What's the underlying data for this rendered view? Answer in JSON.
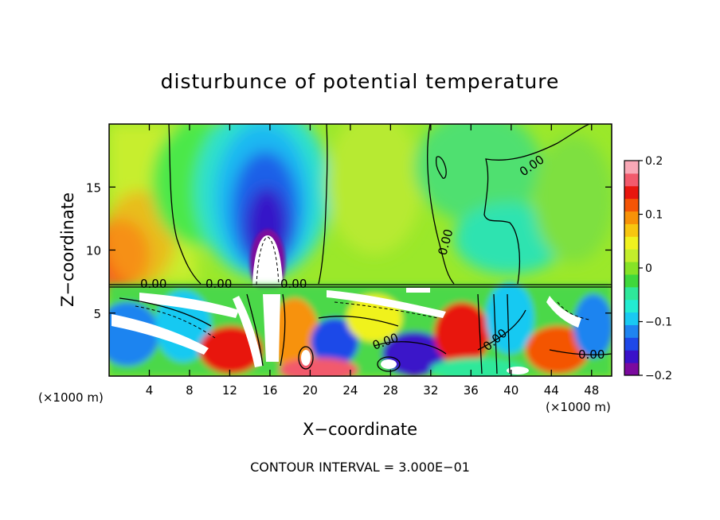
{
  "chart_data": {
    "type": "heatmap",
    "title": "disturbunce of potential temperature",
    "xlabel": "X−coordinate",
    "ylabel": "Z−coordinate",
    "x_unit": "(×1000 m)",
    "y_unit": "(×1000 m)",
    "footer": "CONTOUR INTERVAL = 3.000E−01",
    "xlim": [
      0,
      50
    ],
    "ylim": [
      0,
      20
    ],
    "x_ticks": [
      4,
      8,
      12,
      16,
      20,
      24,
      28,
      32,
      36,
      40,
      44,
      48
    ],
    "y_ticks": [
      5,
      10,
      15
    ],
    "colorbar": {
      "range": [
        -0.2,
        0.2
      ],
      "tick_values": [
        0.2,
        0.1,
        0,
        -0.1,
        -0.2
      ],
      "tick_labels": [
        "0.2",
        "0.1",
        "0",
        "−0.1",
        "−0.2"
      ],
      "colors": [
        "#7b0a9e",
        "#3a12c9",
        "#1e48e8",
        "#1f84f0",
        "#19c9f2",
        "#23ecd2",
        "#2ee89a",
        "#3fd83c",
        "#86e326",
        "#c3ee2c",
        "#f0f21e",
        "#f7c610",
        "#f79208",
        "#f45506",
        "#e8160e",
        "#f25a6c",
        "#f9a8b6"
      ]
    },
    "contour_labels": [
      "0.00",
      "0.00",
      "0.00",
      "0.00",
      "0.00",
      "0.00",
      "0.00",
      "0.00"
    ],
    "features": [
      {
        "name": "cold-plume",
        "x": 15.5,
        "z": 10.5,
        "value": -0.2
      },
      {
        "name": "warm-left-region",
        "x": 1.5,
        "z": 9.5,
        "value": 0.12
      },
      {
        "name": "near-zero-upper-right",
        "x": 38,
        "z": 10,
        "value": -0.02
      }
    ]
  }
}
